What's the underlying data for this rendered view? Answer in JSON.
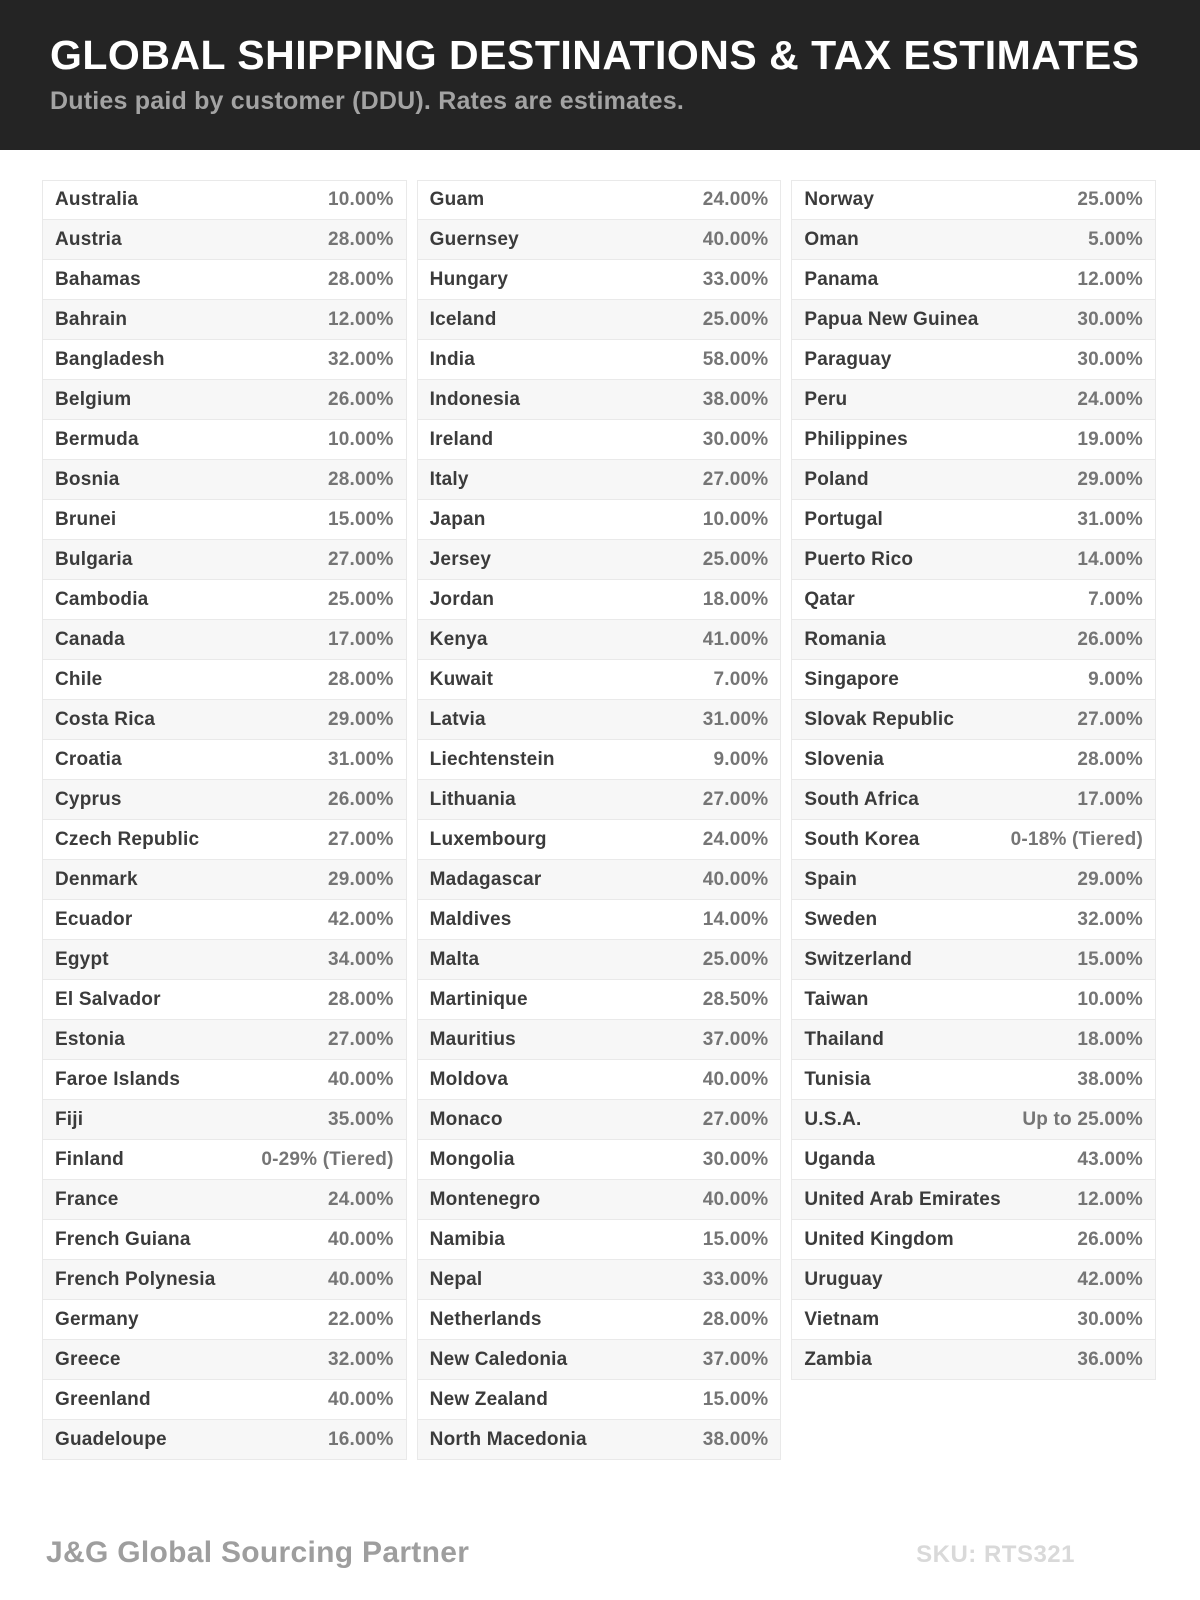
{
  "header": {
    "title": "GLOBAL SHIPPING DESTINATIONS & TAX ESTIMATES",
    "subtitle": "Duties paid by customer (DDU). Rates are estimates."
  },
  "columns": [
    [
      {
        "country": "Australia",
        "rate": "10.00%"
      },
      {
        "country": "Austria",
        "rate": "28.00%"
      },
      {
        "country": "Bahamas",
        "rate": "28.00%"
      },
      {
        "country": "Bahrain",
        "rate": "12.00%"
      },
      {
        "country": "Bangladesh",
        "rate": "32.00%"
      },
      {
        "country": "Belgium",
        "rate": "26.00%"
      },
      {
        "country": "Bermuda",
        "rate": "10.00%"
      },
      {
        "country": "Bosnia",
        "rate": "28.00%"
      },
      {
        "country": "Brunei",
        "rate": "15.00%"
      },
      {
        "country": "Bulgaria",
        "rate": "27.00%"
      },
      {
        "country": "Cambodia",
        "rate": "25.00%"
      },
      {
        "country": "Canada",
        "rate": "17.00%"
      },
      {
        "country": "Chile",
        "rate": "28.00%"
      },
      {
        "country": "Costa Rica",
        "rate": "29.00%"
      },
      {
        "country": "Croatia",
        "rate": "31.00%"
      },
      {
        "country": "Cyprus",
        "rate": "26.00%"
      },
      {
        "country": "Czech Republic",
        "rate": "27.00%"
      },
      {
        "country": "Denmark",
        "rate": "29.00%"
      },
      {
        "country": "Ecuador",
        "rate": "42.00%"
      },
      {
        "country": "Egypt",
        "rate": "34.00%"
      },
      {
        "country": "El Salvador",
        "rate": "28.00%"
      },
      {
        "country": "Estonia",
        "rate": "27.00%"
      },
      {
        "country": "Faroe Islands",
        "rate": "40.00%"
      },
      {
        "country": "Fiji",
        "rate": "35.00%"
      },
      {
        "country": "Finland",
        "rate": "0-29% (Tiered)"
      },
      {
        "country": "France",
        "rate": "24.00%"
      },
      {
        "country": "French Guiana",
        "rate": "40.00%"
      },
      {
        "country": "French Polynesia",
        "rate": "40.00%"
      },
      {
        "country": "Germany",
        "rate": "22.00%"
      },
      {
        "country": "Greece",
        "rate": "32.00%"
      },
      {
        "country": "Greenland",
        "rate": "40.00%"
      },
      {
        "country": "Guadeloupe",
        "rate": "16.00%"
      }
    ],
    [
      {
        "country": "Guam",
        "rate": "24.00%"
      },
      {
        "country": "Guernsey",
        "rate": "40.00%"
      },
      {
        "country": "Hungary",
        "rate": "33.00%"
      },
      {
        "country": "Iceland",
        "rate": "25.00%"
      },
      {
        "country": "India",
        "rate": "58.00%"
      },
      {
        "country": "Indonesia",
        "rate": "38.00%"
      },
      {
        "country": "Ireland",
        "rate": "30.00%"
      },
      {
        "country": "Italy",
        "rate": "27.00%"
      },
      {
        "country": "Japan",
        "rate": "10.00%"
      },
      {
        "country": "Jersey",
        "rate": "25.00%"
      },
      {
        "country": "Jordan",
        "rate": "18.00%"
      },
      {
        "country": "Kenya",
        "rate": "41.00%"
      },
      {
        "country": "Kuwait",
        "rate": "7.00%"
      },
      {
        "country": "Latvia",
        "rate": "31.00%"
      },
      {
        "country": "Liechtenstein",
        "rate": "9.00%"
      },
      {
        "country": "Lithuania",
        "rate": "27.00%"
      },
      {
        "country": "Luxembourg",
        "rate": "24.00%"
      },
      {
        "country": "Madagascar",
        "rate": "40.00%"
      },
      {
        "country": "Maldives",
        "rate": "14.00%"
      },
      {
        "country": "Malta",
        "rate": "25.00%"
      },
      {
        "country": "Martinique",
        "rate": "28.50%"
      },
      {
        "country": "Mauritius",
        "rate": "37.00%"
      },
      {
        "country": "Moldova",
        "rate": "40.00%"
      },
      {
        "country": "Monaco",
        "rate": "27.00%"
      },
      {
        "country": "Mongolia",
        "rate": "30.00%"
      },
      {
        "country": "Montenegro",
        "rate": "40.00%"
      },
      {
        "country": "Namibia",
        "rate": "15.00%"
      },
      {
        "country": "Nepal",
        "rate": "33.00%"
      },
      {
        "country": "Netherlands",
        "rate": "28.00%"
      },
      {
        "country": "New Caledonia",
        "rate": "37.00%"
      },
      {
        "country": "New Zealand",
        "rate": "15.00%"
      },
      {
        "country": "North Macedonia",
        "rate": "38.00%"
      }
    ],
    [
      {
        "country": "Norway",
        "rate": "25.00%"
      },
      {
        "country": "Oman",
        "rate": "5.00%"
      },
      {
        "country": "Panama",
        "rate": "12.00%"
      },
      {
        "country": "Papua New Guinea",
        "rate": "30.00%"
      },
      {
        "country": "Paraguay",
        "rate": "30.00%"
      },
      {
        "country": "Peru",
        "rate": "24.00%"
      },
      {
        "country": "Philippines",
        "rate": "19.00%"
      },
      {
        "country": "Poland",
        "rate": "29.00%"
      },
      {
        "country": "Portugal",
        "rate": "31.00%"
      },
      {
        "country": "Puerto Rico",
        "rate": "14.00%"
      },
      {
        "country": "Qatar",
        "rate": "7.00%"
      },
      {
        "country": "Romania",
        "rate": "26.00%"
      },
      {
        "country": "Singapore",
        "rate": "9.00%"
      },
      {
        "country": "Slovak Republic",
        "rate": "27.00%"
      },
      {
        "country": "Slovenia",
        "rate": "28.00%"
      },
      {
        "country": "South Africa",
        "rate": "17.00%"
      },
      {
        "country": "South Korea",
        "rate": "0-18% (Tiered)"
      },
      {
        "country": "Spain",
        "rate": "29.00%"
      },
      {
        "country": "Sweden",
        "rate": "32.00%"
      },
      {
        "country": "Switzerland",
        "rate": "15.00%"
      },
      {
        "country": "Taiwan",
        "rate": "10.00%"
      },
      {
        "country": "Thailand",
        "rate": "18.00%"
      },
      {
        "country": "Tunisia",
        "rate": "38.00%"
      },
      {
        "country": "U.S.A.",
        "rate": "Up to 25.00%"
      },
      {
        "country": "Uganda",
        "rate": "43.00%"
      },
      {
        "country": "United Arab Emirates",
        "rate": "12.00%"
      },
      {
        "country": "United Kingdom",
        "rate": "26.00%"
      },
      {
        "country": "Uruguay",
        "rate": "42.00%"
      },
      {
        "country": "Vietnam",
        "rate": "30.00%"
      },
      {
        "country": "Zambia",
        "rate": "36.00%"
      }
    ]
  ],
  "footer": {
    "brand": "J&G Global Sourcing Partner",
    "sku": "SKU: RTS321"
  },
  "colors": {
    "header_bg": "#242424",
    "title_color": "#ffffff",
    "subtitle_color": "#a3a3a3",
    "row_border": "#e9e9e9",
    "row_alt_bg": "#f7f7f7",
    "country_color": "#3b3b3b",
    "rate_color": "#757575",
    "brand_color": "#9e9e9e",
    "sku_color": "#d9d9d9"
  }
}
